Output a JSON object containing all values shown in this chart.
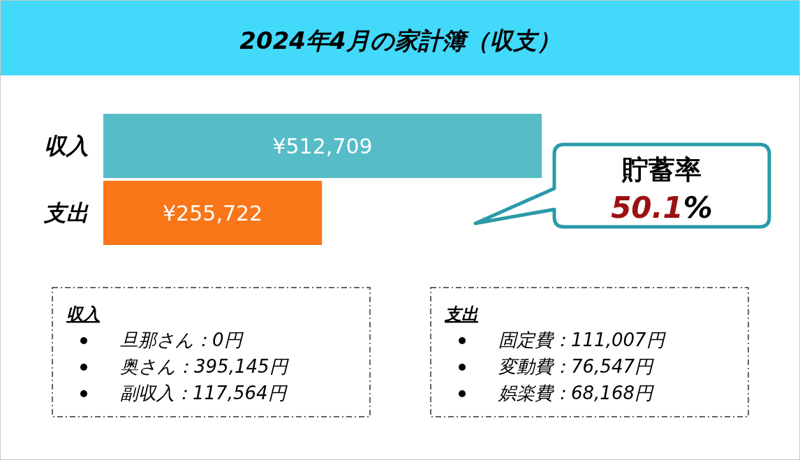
{
  "chart_data": [
    {
      "type": "bar",
      "orientation": "horizontal",
      "title": "2024年4月の家計簿（収支）",
      "categories": [
        "収入",
        "支出"
      ],
      "values": [
        512709,
        255722
      ],
      "colors": [
        "#56bcc8",
        "#f97619"
      ],
      "value_labels": [
        "¥512,709",
        "¥255,722"
      ],
      "annotations": [
        "貯蓄率",
        "50.1%"
      ]
    },
    {
      "type": "other",
      "title": "収入",
      "annotations": [
        "旦那さん：0円",
        "奥さん：395,145円",
        "副収入：117,564円"
      ]
    },
    {
      "type": "other",
      "title": "支出",
      "annotations": [
        "固定費：111,007円",
        "変動費：76,547円",
        "娯楽費：68,168円"
      ]
    }
  ]
}
